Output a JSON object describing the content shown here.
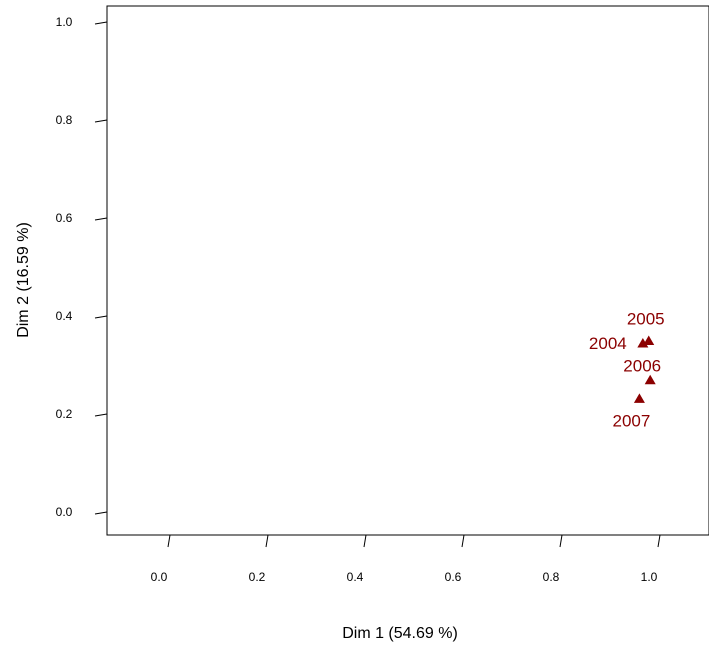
{
  "chart_data": {
    "type": "scatter",
    "title": "",
    "xlabel": "Dim 1 (54.69 %)",
    "ylabel": "Dim 2 (16.59 %)",
    "xlim": [
      -0.13,
      1.05
    ],
    "ylim": [
      -0.05,
      1.05
    ],
    "x_ticks": [
      "0.0",
      "0.2",
      "0.4",
      "0.6",
      "0.8",
      "1.0"
    ],
    "y_ticks": [
      "0.0",
      "0.2",
      "0.4",
      "0.6",
      "0.8",
      "1.0"
    ],
    "grid": false,
    "marker": "triangle",
    "color": "#8b0000",
    "points": [
      {
        "label": "2004",
        "x": 0.965,
        "y": 0.345
      },
      {
        "label": "2005",
        "x": 0.977,
        "y": 0.35
      },
      {
        "label": "2006",
        "x": 0.98,
        "y": 0.27
      },
      {
        "label": "2007",
        "x": 0.958,
        "y": 0.232
      }
    ]
  }
}
